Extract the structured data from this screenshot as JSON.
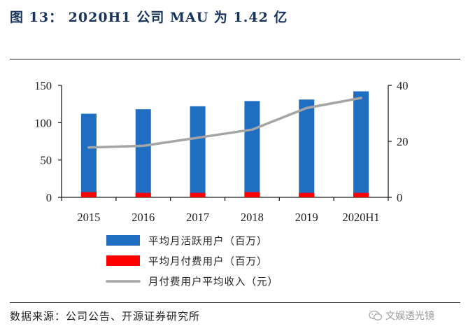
{
  "title": "图 13： 2020H1 公司 MAU 为 1.42 亿",
  "source": "数据来源：公司公告、开源证券研究所",
  "watermark": "文娱透光镜",
  "colors": {
    "mau": "#1f6ec1",
    "paying": "#ff0000",
    "arpu": "#a5a5a5",
    "title": "#17335e"
  },
  "chart_data": {
    "type": "bar",
    "categories": [
      "2015",
      "2016",
      "2017",
      "2018",
      "2019",
      "2020H1"
    ],
    "series": [
      {
        "name": "平均月活跃用户（百万）",
        "type": "bar",
        "axis": "left",
        "values": [
          112,
          118,
          122,
          129,
          131,
          142
        ]
      },
      {
        "name": "平均月付费用户（百万）",
        "type": "bar",
        "axis": "left",
        "values": [
          7,
          6,
          6,
          7,
          6,
          6
        ]
      },
      {
        "name": "月付费用户平均收入（元）",
        "type": "line",
        "axis": "right",
        "values": [
          17.8,
          18.4,
          21.3,
          24.2,
          31.9,
          35.5
        ]
      }
    ],
    "y_left": {
      "ylim": [
        0,
        150
      ],
      "ticks": [
        0,
        50,
        100,
        150
      ]
    },
    "y_right": {
      "ylim": [
        0,
        40
      ],
      "ticks": [
        0,
        20,
        40
      ]
    },
    "legend_position": "bottom"
  }
}
